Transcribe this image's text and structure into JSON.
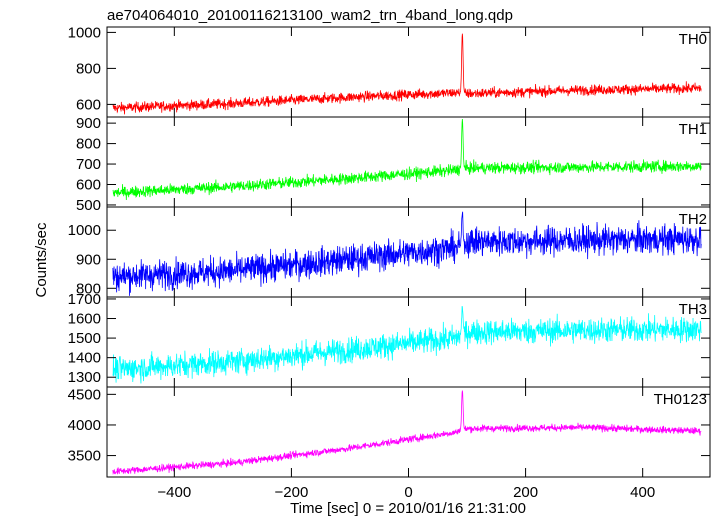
{
  "chart_data": {
    "type": "line",
    "title": "ae704064010_20100116213100_wam2_trn_4band_long.qdp",
    "xlabel": "Time [sec] 0 = 2010/01/16 21:31:00",
    "ylabel": "Counts/sec",
    "xlim": [
      -515,
      515
    ],
    "x_ticks": [
      -400,
      -200,
      0,
      200,
      400
    ],
    "x_tick_labels": [
      "−400",
      "−200",
      "0",
      "200",
      "400"
    ],
    "panels": [
      {
        "name": "TH0",
        "color": "#ff0000",
        "ylim": [
          530,
          1030
        ],
        "y_ticks": [
          600,
          800,
          1000
        ],
        "trend": [
          [
            -500,
            580
          ],
          [
            -300,
            605
          ],
          [
            -100,
            640
          ],
          [
            80,
            665
          ],
          [
            100,
            660
          ],
          [
            300,
            680
          ],
          [
            500,
            690
          ]
        ],
        "noise": 20,
        "peak": {
          "x": 92,
          "y": 1000
        }
      },
      {
        "name": "TH1",
        "color": "#00ff00",
        "ylim": [
          490,
          930
        ],
        "y_ticks": [
          500,
          600,
          700,
          800,
          900
        ],
        "trend": [
          [
            -500,
            560
          ],
          [
            -300,
            590
          ],
          [
            -100,
            630
          ],
          [
            80,
            670
          ],
          [
            100,
            680
          ],
          [
            300,
            685
          ],
          [
            500,
            690
          ]
        ],
        "noise": 20,
        "peak": {
          "x": 92,
          "y": 920
        }
      },
      {
        "name": "TH2",
        "color": "#0000ff",
        "ylim": [
          770,
          1080
        ],
        "y_ticks": [
          800,
          900,
          1000
        ],
        "trend": [
          [
            -500,
            840
          ],
          [
            -300,
            860
          ],
          [
            -100,
            900
          ],
          [
            80,
            940
          ],
          [
            100,
            960
          ],
          [
            300,
            965
          ],
          [
            500,
            970
          ]
        ],
        "noise": 35,
        "peak": {
          "x": 92,
          "y": 1060
        }
      },
      {
        "name": "TH3",
        "color": "#00ffff",
        "ylim": [
          1250,
          1710
        ],
        "y_ticks": [
          1300,
          1400,
          1500,
          1600,
          1700
        ],
        "trend": [
          [
            -500,
            1340
          ],
          [
            -300,
            1380
          ],
          [
            -100,
            1440
          ],
          [
            80,
            1500
          ],
          [
            100,
            1530
          ],
          [
            300,
            1540
          ],
          [
            500,
            1545
          ]
        ],
        "noise": 45,
        "peak": {
          "x": 92,
          "y": 1660
        }
      },
      {
        "name": "TH0123",
        "color": "#ff00ff",
        "ylim": [
          3150,
          4620
        ],
        "y_ticks": [
          3500,
          4000,
          4500
        ],
        "trend": [
          [
            -500,
            3240
          ],
          [
            -300,
            3380
          ],
          [
            -100,
            3620
          ],
          [
            80,
            3880
          ],
          [
            100,
            3940
          ],
          [
            300,
            3960
          ],
          [
            500,
            3900
          ]
        ],
        "noise": 40,
        "peak": {
          "x": 92,
          "y": 4580
        }
      }
    ]
  }
}
